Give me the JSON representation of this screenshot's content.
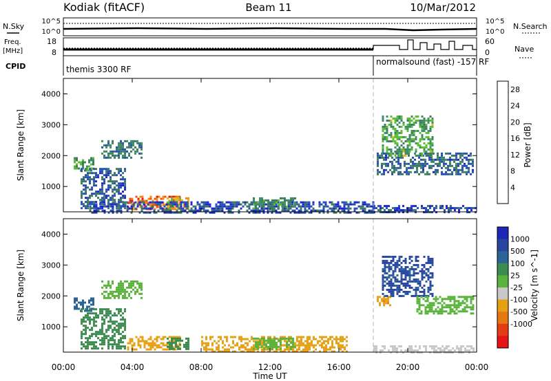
{
  "header": {
    "station": "Kodiak (fitACF)",
    "beam": "Beam 11",
    "date": "10/Mar/2012"
  },
  "top_panels": {
    "nsky_label": "N.Sky",
    "nsky_ticks": [
      "10^5",
      "10^0"
    ],
    "nsearch_label": "N.Search",
    "nsearch_ticks": [
      "10^5",
      "10^0"
    ],
    "freq_label": "Freq.",
    "freq_unit": "[MHz]",
    "freq_ticks": [
      "18",
      "8"
    ],
    "nave_label": "Nave",
    "nave_ticks": [
      "60",
      "0"
    ],
    "cpid_label": "CPID",
    "cpid_segments": [
      "themis 3300 RF",
      "normalsound (fast) -157 RF"
    ]
  },
  "colors": {
    "power_scale": [
      "#1e28d2",
      "#2850b4",
      "#3c7864",
      "#3c8c64",
      "#5abe32",
      "#e6b428",
      "#f08c14",
      "#f05014",
      "#e61414"
    ],
    "velocity_scale": [
      "#1e28b4",
      "#2846a0",
      "#2d6496",
      "#3c8c50",
      "#5ab43c",
      "#c8c8c8",
      "#e6a014",
      "#e67814",
      "#e63c14",
      "#e61414"
    ],
    "marker_line": "#b4b4b4"
  },
  "chart_data": [
    {
      "type": "heatmap",
      "title": "",
      "ylabel": "Slant Range [km]",
      "xlabel": "",
      "x_ticks": [
        "00:00",
        "04:00",
        "08:00",
        "12:00",
        "16:00",
        "20:00",
        "00:00"
      ],
      "xlim_hours": [
        0,
        24
      ],
      "ylim": [
        180,
        4500
      ],
      "y_ticks": [
        1000,
        2000,
        3000,
        4000
      ],
      "vertical_marker_hour": 18,
      "colorbar": {
        "label": "Power [dB]",
        "ticks": [
          4,
          8,
          12,
          16,
          20,
          24,
          28
        ],
        "range": [
          0,
          30
        ]
      },
      "regions": [
        {
          "t0": 0.6,
          "t1": 1.8,
          "r0": 1500,
          "r1": 1950,
          "value": 12
        },
        {
          "t0": 1.0,
          "t1": 3.6,
          "r0": 300,
          "r1": 1600,
          "value": 6
        },
        {
          "t0": 2.2,
          "t1": 4.5,
          "r0": 1900,
          "r1": 2500,
          "value": 9
        },
        {
          "t0": 3.7,
          "t1": 6.8,
          "r0": 250,
          "r1": 700,
          "value": 24
        },
        {
          "t0": 6.0,
          "t1": 7.3,
          "r0": 250,
          "r1": 650,
          "value": 18
        },
        {
          "t0": 1.5,
          "t1": 18.0,
          "r0": 180,
          "r1": 520,
          "value": 5
        },
        {
          "t0": 11.0,
          "t1": 13.5,
          "r0": 250,
          "r1": 650,
          "value": 11
        },
        {
          "t0": 18.2,
          "t1": 23.8,
          "r0": 1400,
          "r1": 2100,
          "value": 7
        },
        {
          "t0": 18.5,
          "t1": 21.5,
          "r0": 2000,
          "r1": 3300,
          "value": 13
        },
        {
          "t0": 18.0,
          "t1": 24.0,
          "r0": 180,
          "r1": 400,
          "value": 4
        }
      ]
    },
    {
      "type": "heatmap",
      "title": "",
      "ylabel": "Slant Range [km]",
      "xlabel": "Time UT",
      "x_ticks": [
        "00:00",
        "04:00",
        "08:00",
        "12:00",
        "16:00",
        "20:00",
        "00:00"
      ],
      "xlim_hours": [
        0,
        24
      ],
      "ylim": [
        180,
        4500
      ],
      "y_ticks": [
        1000,
        2000,
        3000,
        4000
      ],
      "vertical_marker_hour": 18,
      "colorbar": {
        "label": "Velocity [m s^-1]",
        "ticks": [
          1000,
          500,
          100,
          25,
          -25,
          -100,
          -500,
          -1000
        ]
      },
      "regions": [
        {
          "t0": 0.6,
          "t1": 1.8,
          "r0": 1500,
          "r1": 1950,
          "value": 300
        },
        {
          "t0": 1.0,
          "t1": 3.6,
          "r0": 300,
          "r1": 1600,
          "value": 60
        },
        {
          "t0": 2.2,
          "t1": 4.5,
          "r0": 1900,
          "r1": 2500,
          "value": 0
        },
        {
          "t0": 3.7,
          "t1": 6.8,
          "r0": 250,
          "r1": 700,
          "value": -200
        },
        {
          "t0": 6.0,
          "t1": 7.3,
          "r0": 250,
          "r1": 650,
          "value": 50
        },
        {
          "t0": 8.0,
          "t1": 16.5,
          "r0": 180,
          "r1": 700,
          "value": -150
        },
        {
          "t0": 11.0,
          "t1": 13.5,
          "r0": 250,
          "r1": 650,
          "value": 0
        },
        {
          "t0": 18.2,
          "t1": 19.0,
          "r0": 1700,
          "r1": 2000,
          "value": -400
        },
        {
          "t0": 18.5,
          "t1": 21.5,
          "r0": 2000,
          "r1": 3300,
          "value": 600
        },
        {
          "t0": 20.5,
          "t1": 23.8,
          "r0": 1400,
          "r1": 2000,
          "value": 0
        },
        {
          "t0": 18.0,
          "t1": 24.0,
          "r0": 180,
          "r1": 400,
          "value": -50
        }
      ]
    }
  ]
}
